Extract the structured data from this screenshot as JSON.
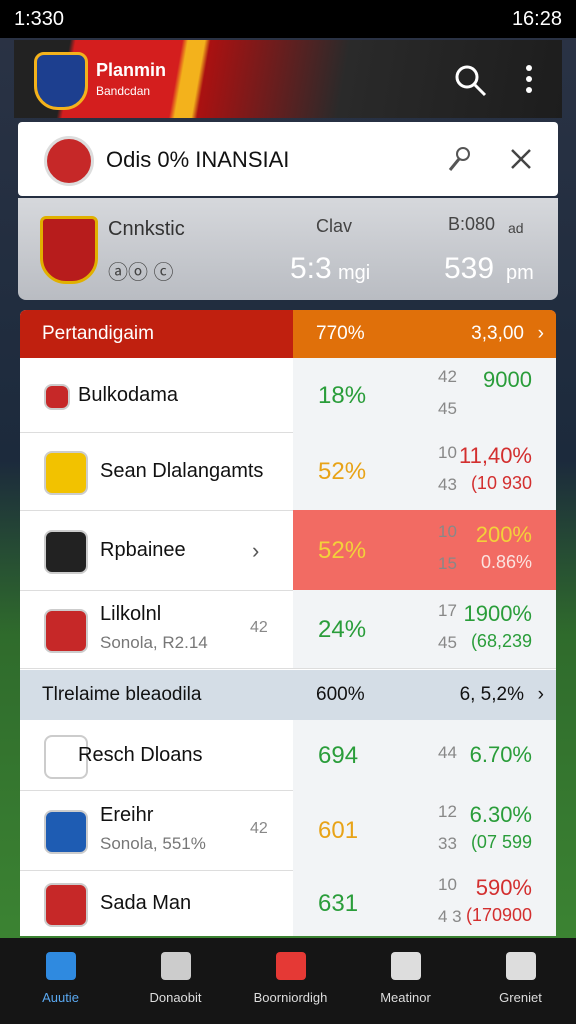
{
  "status": {
    "time": "1:330",
    "clock": "16:28"
  },
  "header": {
    "title": "Planmin",
    "subtitle": "Bandcdan"
  },
  "search": {
    "title": "Odis 0% INANSIAI"
  },
  "match": {
    "team": "Cnnkstic",
    "badges": "ⓐⓞ ⓒ",
    "left_label": "Clav",
    "left_value": "5:3",
    "left_unit": "mgi",
    "right_label": "B:080",
    "right_sub": "ad",
    "right_value": "539",
    "right_unit": "pm"
  },
  "sections": [
    {
      "title": "Pertandigaim",
      "pct": "770%",
      "value": "3,3,00",
      "rows": [
        {
          "name": "Bulkodama",
          "pct": "18%",
          "top": "42",
          "bottom": "45",
          "value": "9000"
        },
        {
          "name": "Sean Dlalangamts",
          "pct": "52%",
          "top": "10",
          "bottom": "43",
          "value": "11,40%",
          "value2": "(10 930"
        },
        {
          "name": "Rpbainee",
          "pct": "52%",
          "top": "10",
          "bottom": "15",
          "value": "200%",
          "value2": "0.86%"
        },
        {
          "name": "Lilkolnl",
          "sub": "Sonola, R2.14",
          "mid": "42",
          "pct": "24%",
          "top": "17",
          "bottom": "45",
          "value": "1900%",
          "value2": "(68,239"
        }
      ]
    },
    {
      "title": "Tlrelaime bleaodila",
      "pct": "600%",
      "value": "6, 5,2%",
      "rows": [
        {
          "name": "Resch Dloans",
          "pct": "694",
          "top": "44",
          "value": "6.70%"
        },
        {
          "name": "Ereihr",
          "sub": "Sonola, 551%",
          "mid": "42",
          "pct": "601",
          "top": "12",
          "bottom": "33",
          "value": "6.30%",
          "value2": "(07 599"
        },
        {
          "name": "Sada Man",
          "pct": "631",
          "top": "10",
          "bottom": "4 3",
          "value": "590%",
          "value2": "(170900"
        }
      ]
    }
  ],
  "nav": [
    "Auutie",
    "Donaobit",
    "Boorniordigh",
    "Meatinor",
    "Greniet"
  ]
}
